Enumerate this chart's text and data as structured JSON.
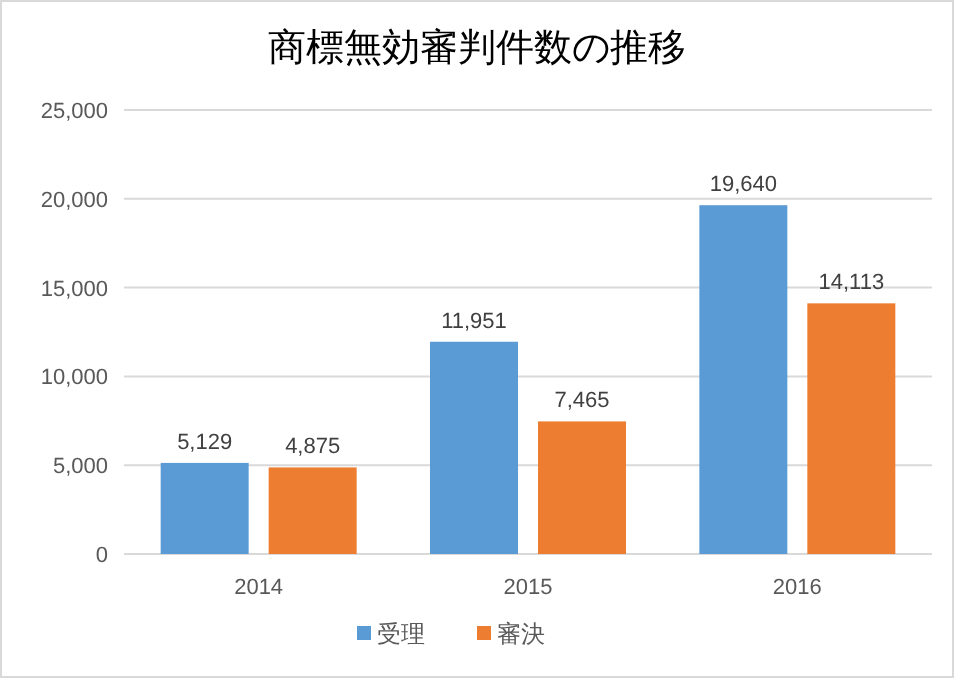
{
  "chart_data": {
    "type": "bar",
    "title": "商標無効審判件数の推移",
    "categories": [
      "2014",
      "2015",
      "2016"
    ],
    "series": [
      {
        "name": "受理",
        "color": "#5b9bd5",
        "values": [
          5129,
          11951,
          19640
        ],
        "value_labels": [
          "5,129",
          "11,951",
          "19,640"
        ]
      },
      {
        "name": "審決",
        "color": "#ed7d31",
        "values": [
          4875,
          7465,
          14113
        ],
        "value_labels": [
          "4,875",
          "7,465",
          "14,113"
        ]
      }
    ],
    "ylim": [
      0,
      25000
    ],
    "yticks": [
      0,
      {
        "value": 5000,
        "label": "5,000"
      },
      {
        "value": 10000,
        "label": "10,000"
      },
      {
        "value": 15000,
        "label": "15,000"
      },
      {
        "value": 20000,
        "label": "20,000"
      },
      {
        "value": 25000,
        "label": "25,000"
      }
    ],
    "grid": "y",
    "legend": "bottom"
  }
}
